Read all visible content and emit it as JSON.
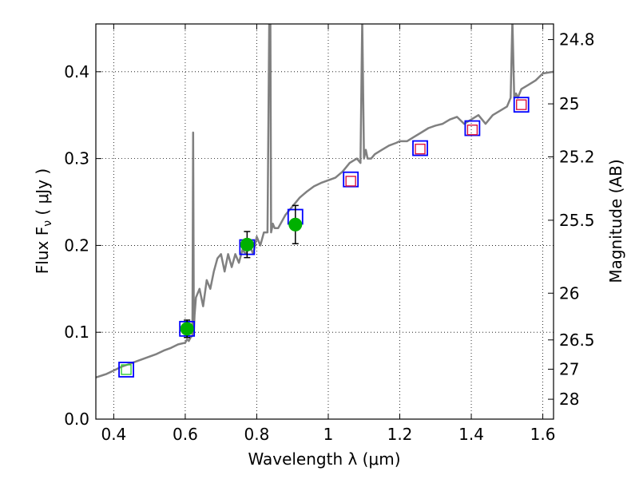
{
  "chart_data": {
    "type": "scatter",
    "xlabel": "Wavelength  λ (μm)",
    "ylabel": "Flux  F",
    "ylabel_sub": "ν",
    "ylabel_unit": " ( μJy )",
    "ylabel_right": "Magnitude (AB)",
    "xlim": [
      0.35,
      1.63
    ],
    "ylim": [
      0.0,
      0.455
    ],
    "grid": true,
    "grid_style": "dotted",
    "x_ticks": [
      0.4,
      0.6,
      0.8,
      1.0,
      1.2,
      1.4,
      1.6
    ],
    "x_tick_labels": [
      "0.4",
      "0.6",
      "0.8",
      "1",
      "1.2",
      "1.4",
      "1.6"
    ],
    "y_ticks": [
      0.0,
      0.1,
      0.2,
      0.3,
      0.4
    ],
    "y_tick_labels": [
      "0.0",
      "0.1",
      "0.2",
      "0.3",
      "0.4"
    ],
    "y2_ticks": [
      {
        "label": "24.8",
        "flux": 0.437
      },
      {
        "label": "25",
        "flux": 0.363
      },
      {
        "label": "25.2",
        "flux": 0.302
      },
      {
        "label": "25.5",
        "flux": 0.229
      },
      {
        "label": "26",
        "flux": 0.145
      },
      {
        "label": "26.5",
        "flux": 0.0912
      },
      {
        "label": "27",
        "flux": 0.0575
      },
      {
        "label": "28",
        "flux": 0.0229
      }
    ],
    "colors": {
      "model": "#808080",
      "model_points": "#0000ff",
      "hst_photometry": "#dc143c",
      "spitzer_photometry": "#32cd32",
      "observed": "#00b000",
      "error_bar": "#000000"
    },
    "series": [
      {
        "kind": "model_spectrum",
        "x": [
          0.35,
          0.38,
          0.4,
          0.42,
          0.44,
          0.46,
          0.48,
          0.5,
          0.52,
          0.54,
          0.56,
          0.58,
          0.6,
          0.605,
          0.61,
          0.615,
          0.62,
          0.622,
          0.624,
          0.626,
          0.63,
          0.64,
          0.65,
          0.66,
          0.67,
          0.68,
          0.69,
          0.7,
          0.71,
          0.72,
          0.73,
          0.74,
          0.75,
          0.76,
          0.77,
          0.78,
          0.79,
          0.8,
          0.81,
          0.82,
          0.83,
          0.835,
          0.838,
          0.84,
          0.845,
          0.85,
          0.86,
          0.88,
          0.9,
          0.92,
          0.94,
          0.96,
          0.98,
          1.0,
          1.02,
          1.04,
          1.06,
          1.08,
          1.09,
          1.095,
          1.1,
          1.105,
          1.11,
          1.12,
          1.13,
          1.15,
          1.17,
          1.19,
          1.2,
          1.22,
          1.24,
          1.26,
          1.28,
          1.3,
          1.32,
          1.34,
          1.36,
          1.38,
          1.4,
          1.42,
          1.44,
          1.46,
          1.48,
          1.5,
          1.51,
          1.515,
          1.52,
          1.525,
          1.53,
          1.54,
          1.56,
          1.58,
          1.6,
          1.63
        ],
        "y": [
          0.048,
          0.052,
          0.056,
          0.06,
          0.063,
          0.066,
          0.069,
          0.072,
          0.075,
          0.079,
          0.082,
          0.086,
          0.088,
          0.092,
          0.09,
          0.094,
          0.096,
          0.33,
          0.1,
          0.12,
          0.14,
          0.15,
          0.13,
          0.16,
          0.15,
          0.17,
          0.185,
          0.19,
          0.17,
          0.19,
          0.175,
          0.19,
          0.18,
          0.195,
          0.19,
          0.2,
          0.19,
          0.21,
          0.2,
          0.215,
          0.215,
          0.46,
          0.46,
          0.215,
          0.225,
          0.22,
          0.22,
          0.235,
          0.245,
          0.255,
          0.262,
          0.268,
          0.272,
          0.275,
          0.278,
          0.285,
          0.295,
          0.3,
          0.295,
          0.46,
          0.3,
          0.31,
          0.3,
          0.3,
          0.305,
          0.31,
          0.315,
          0.318,
          0.32,
          0.32,
          0.325,
          0.33,
          0.335,
          0.338,
          0.34,
          0.345,
          0.348,
          0.34,
          0.345,
          0.35,
          0.34,
          0.35,
          0.355,
          0.36,
          0.37,
          0.46,
          0.37,
          0.375,
          0.37,
          0.38,
          0.385,
          0.39,
          0.398,
          0.4
        ]
      },
      {
        "kind": "model_points",
        "x": [
          0.435,
          0.605,
          0.773,
          0.908,
          1.063,
          1.257,
          1.403,
          1.54
        ],
        "y": [
          0.057,
          0.104,
          0.198,
          0.233,
          0.276,
          0.312,
          0.335,
          0.362
        ]
      },
      {
        "kind": "hst_photometry",
        "x": [
          1.063,
          1.257,
          1.403,
          1.54
        ],
        "y": [
          0.274,
          0.311,
          0.333,
          0.362
        ]
      },
      {
        "kind": "spitzer_photometry",
        "x": [
          0.435
        ],
        "y": [
          0.057
        ]
      },
      {
        "kind": "observed",
        "x": [
          0.605,
          0.773,
          0.908
        ],
        "y": [
          0.104,
          0.201,
          0.224
        ],
        "yerr": [
          0.01,
          0.015,
          0.022
        ]
      }
    ]
  }
}
